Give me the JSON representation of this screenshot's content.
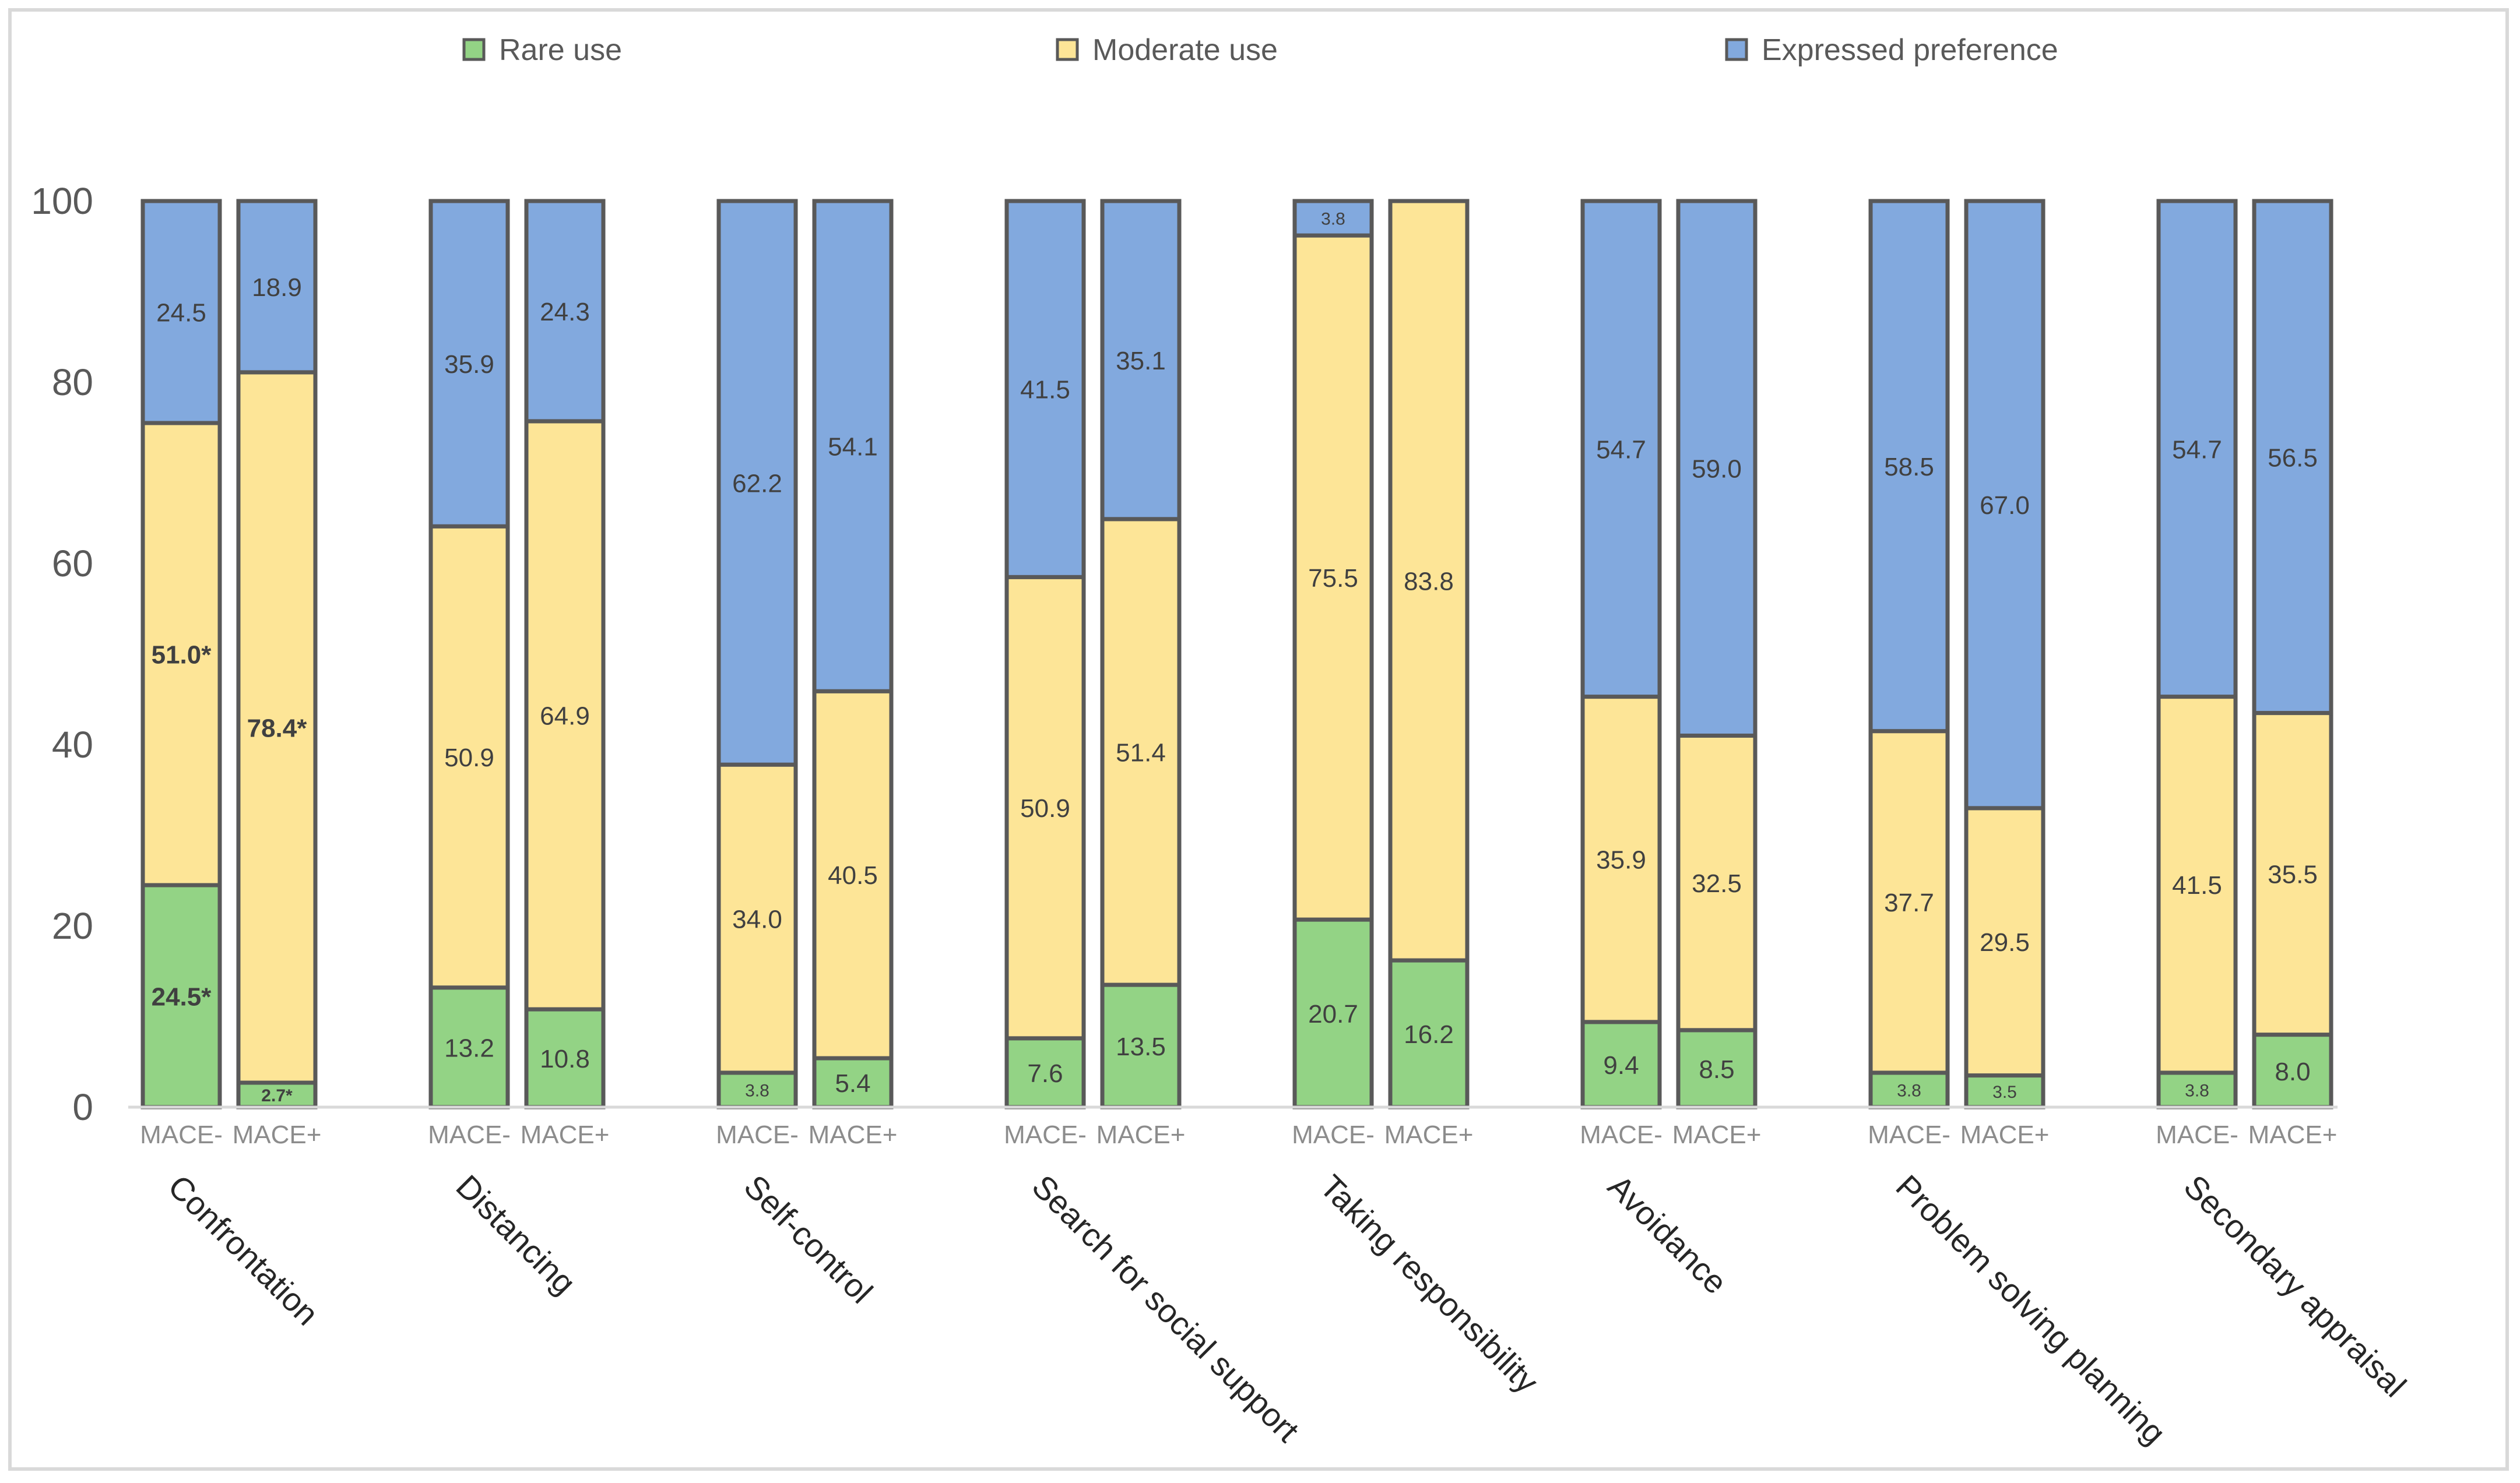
{
  "chart_data": {
    "type": "bar",
    "stacked": true,
    "title": "",
    "xlabel": "",
    "ylabel": "",
    "ylim": [
      0,
      100
    ],
    "yticks": [
      0,
      20,
      40,
      60,
      80,
      100
    ],
    "legend": {
      "placement": "top",
      "entries": [
        {
          "name": "Rare use",
          "color": "#93d385"
        },
        {
          "name": "Moderate use",
          "color": "#fde597"
        },
        {
          "name": "Expressed preference",
          "color": "#82a9de"
        }
      ]
    },
    "groups": [
      "MACE-",
      "MACE+"
    ],
    "categories": [
      {
        "name": "Confrontation",
        "bars": [
          {
            "group": "MACE-",
            "rare": 24.5,
            "moderate": 51.0,
            "preference": 24.5,
            "labels": {
              "rare": "24.5*",
              "moderate": "51.0*",
              "preference": "24.5"
            },
            "bold": [
              "rare",
              "moderate"
            ]
          },
          {
            "group": "MACE+",
            "rare": 2.7,
            "moderate": 78.4,
            "preference": 18.9,
            "labels": {
              "rare": "2.7*",
              "moderate": "78.4*",
              "preference": "18.9"
            },
            "bold": [
              "rare",
              "moderate"
            ]
          }
        ]
      },
      {
        "name": "Distancing",
        "bars": [
          {
            "group": "MACE-",
            "rare": 13.2,
            "moderate": 50.9,
            "preference": 35.9,
            "labels": {
              "rare": "13.2",
              "moderate": "50.9",
              "preference": "35.9"
            },
            "bold": []
          },
          {
            "group": "MACE+",
            "rare": 10.8,
            "moderate": 64.9,
            "preference": 24.3,
            "labels": {
              "rare": "10.8",
              "moderate": "64.9",
              "preference": "24.3"
            },
            "bold": []
          }
        ]
      },
      {
        "name": "Self-control",
        "bars": [
          {
            "group": "MACE-",
            "rare": 3.8,
            "moderate": 34.0,
            "preference": 62.2,
            "labels": {
              "rare": "3.8",
              "moderate": "34.0",
              "preference": "62.2"
            },
            "bold": []
          },
          {
            "group": "MACE+",
            "rare": 5.4,
            "moderate": 40.5,
            "preference": 54.1,
            "labels": {
              "rare": "5.4",
              "moderate": "40.5",
              "preference": "54.1"
            },
            "bold": []
          }
        ]
      },
      {
        "name": "Search for social support",
        "bars": [
          {
            "group": "MACE-",
            "rare": 7.6,
            "moderate": 50.9,
            "preference": 41.5,
            "labels": {
              "rare": "7.6",
              "moderate": "50.9",
              "preference": "41.5"
            },
            "bold": []
          },
          {
            "group": "MACE+",
            "rare": 13.5,
            "moderate": 51.4,
            "preference": 35.1,
            "labels": {
              "rare": "13.5",
              "moderate": "51.4",
              "preference": "35.1"
            },
            "bold": []
          }
        ]
      },
      {
        "name": "Taking responsibility",
        "bars": [
          {
            "group": "MACE-",
            "rare": 20.7,
            "moderate": 75.5,
            "preference": 3.8,
            "labels": {
              "rare": "20.7",
              "moderate": "75.5",
              "preference": "3.8"
            },
            "bold": []
          },
          {
            "group": "MACE+",
            "rare": 16.2,
            "moderate": 83.8,
            "preference": 0,
            "labels": {
              "rare": "16.2",
              "moderate": "83.8",
              "preference": ""
            },
            "bold": []
          }
        ]
      },
      {
        "name": "Avoidance",
        "bars": [
          {
            "group": "MACE-",
            "rare": 9.4,
            "moderate": 35.9,
            "preference": 54.7,
            "labels": {
              "rare": "9.4",
              "moderate": "35.9",
              "preference": "54.7"
            },
            "bold": []
          },
          {
            "group": "MACE+",
            "rare": 8.5,
            "moderate": 32.5,
            "preference": 59.0,
            "labels": {
              "rare": "8.5",
              "moderate": "32.5",
              "preference": "59.0"
            },
            "bold": []
          }
        ]
      },
      {
        "name": "Problem solving planning",
        "bars": [
          {
            "group": "MACE-",
            "rare": 3.8,
            "moderate": 37.7,
            "preference": 58.5,
            "labels": {
              "rare": "3.8",
              "moderate": "37.7",
              "preference": "58.5"
            },
            "bold": []
          },
          {
            "group": "MACE+",
            "rare": 3.5,
            "moderate": 29.5,
            "preference": 67.0,
            "labels": {
              "rare": "3.5",
              "moderate": "29.5",
              "preference": "67.0"
            },
            "bold": []
          }
        ]
      },
      {
        "name": "Secondary appraisal",
        "bars": [
          {
            "group": "MACE-",
            "rare": 3.8,
            "moderate": 41.5,
            "preference": 54.7,
            "labels": {
              "rare": "3.8",
              "moderate": "41.5",
              "preference": "54.7"
            },
            "bold": []
          },
          {
            "group": "MACE+",
            "rare": 8.0,
            "moderate": 35.5,
            "preference": 56.5,
            "labels": {
              "rare": "8.0",
              "moderate": "35.5",
              "preference": "56.5"
            },
            "bold": []
          }
        ]
      }
    ]
  }
}
